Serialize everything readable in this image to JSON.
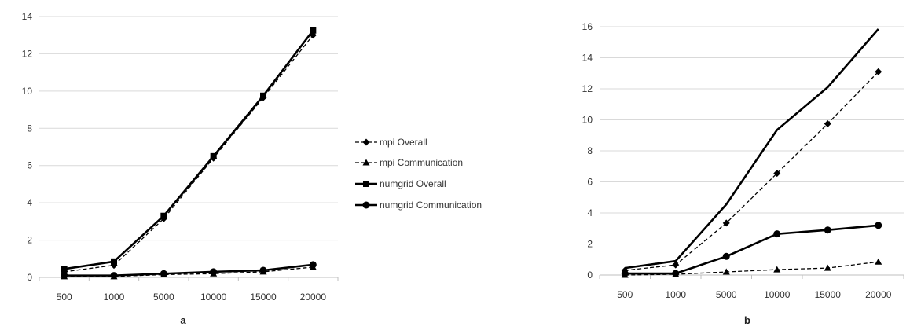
{
  "chart_data": [
    {
      "type": "line",
      "caption": "a",
      "categories": [
        "500",
        "1000",
        "5000",
        "10000",
        "15000",
        "20000"
      ],
      "ylim": [
        0,
        14
      ],
      "yticks": [
        0,
        2,
        4,
        6,
        8,
        10,
        12,
        14
      ],
      "grid": true,
      "legend": "right",
      "series": [
        {
          "name": "mpi Overall",
          "marker": "diamond",
          "dash": true,
          "values": [
            0.3,
            0.65,
            3.15,
            6.4,
            9.65,
            13.0
          ]
        },
        {
          "name": "mpi Communication",
          "marker": "triangle",
          "dash": true,
          "values": [
            0.05,
            0.05,
            0.15,
            0.2,
            0.3,
            0.55
          ]
        },
        {
          "name": "numgrid Overall",
          "marker": "square",
          "dash": false,
          "values": [
            0.45,
            0.85,
            3.3,
            6.5,
            9.75,
            13.25
          ]
        },
        {
          "name": "numgrid Communication",
          "marker": "circle",
          "dash": false,
          "values": [
            0.1,
            0.1,
            0.2,
            0.3,
            0.38,
            0.68
          ]
        }
      ]
    },
    {
      "type": "line",
      "caption": "b",
      "categories": [
        "500",
        "1000",
        "5000",
        "10000",
        "15000",
        "20000"
      ],
      "ylim": [
        0,
        16
      ],
      "yticks": [
        0,
        2,
        4,
        6,
        8,
        10,
        12,
        14,
        16
      ],
      "grid": true,
      "legend": "none",
      "series": [
        {
          "marker": "diamond",
          "dash": true,
          "values": [
            0.3,
            0.65,
            3.35,
            6.55,
            9.75,
            13.1
          ]
        },
        {
          "marker": "triangle",
          "dash": true,
          "values": [
            0.0,
            0.05,
            0.2,
            0.35,
            0.45,
            0.85
          ]
        },
        {
          "marker": "none",
          "dash": false,
          "values": [
            0.45,
            0.9,
            4.55,
            9.35,
            12.1,
            15.85
          ]
        },
        {
          "marker": "circle",
          "dash": false,
          "values": [
            0.1,
            0.1,
            1.2,
            2.65,
            2.9,
            3.2
          ]
        }
      ]
    }
  ]
}
